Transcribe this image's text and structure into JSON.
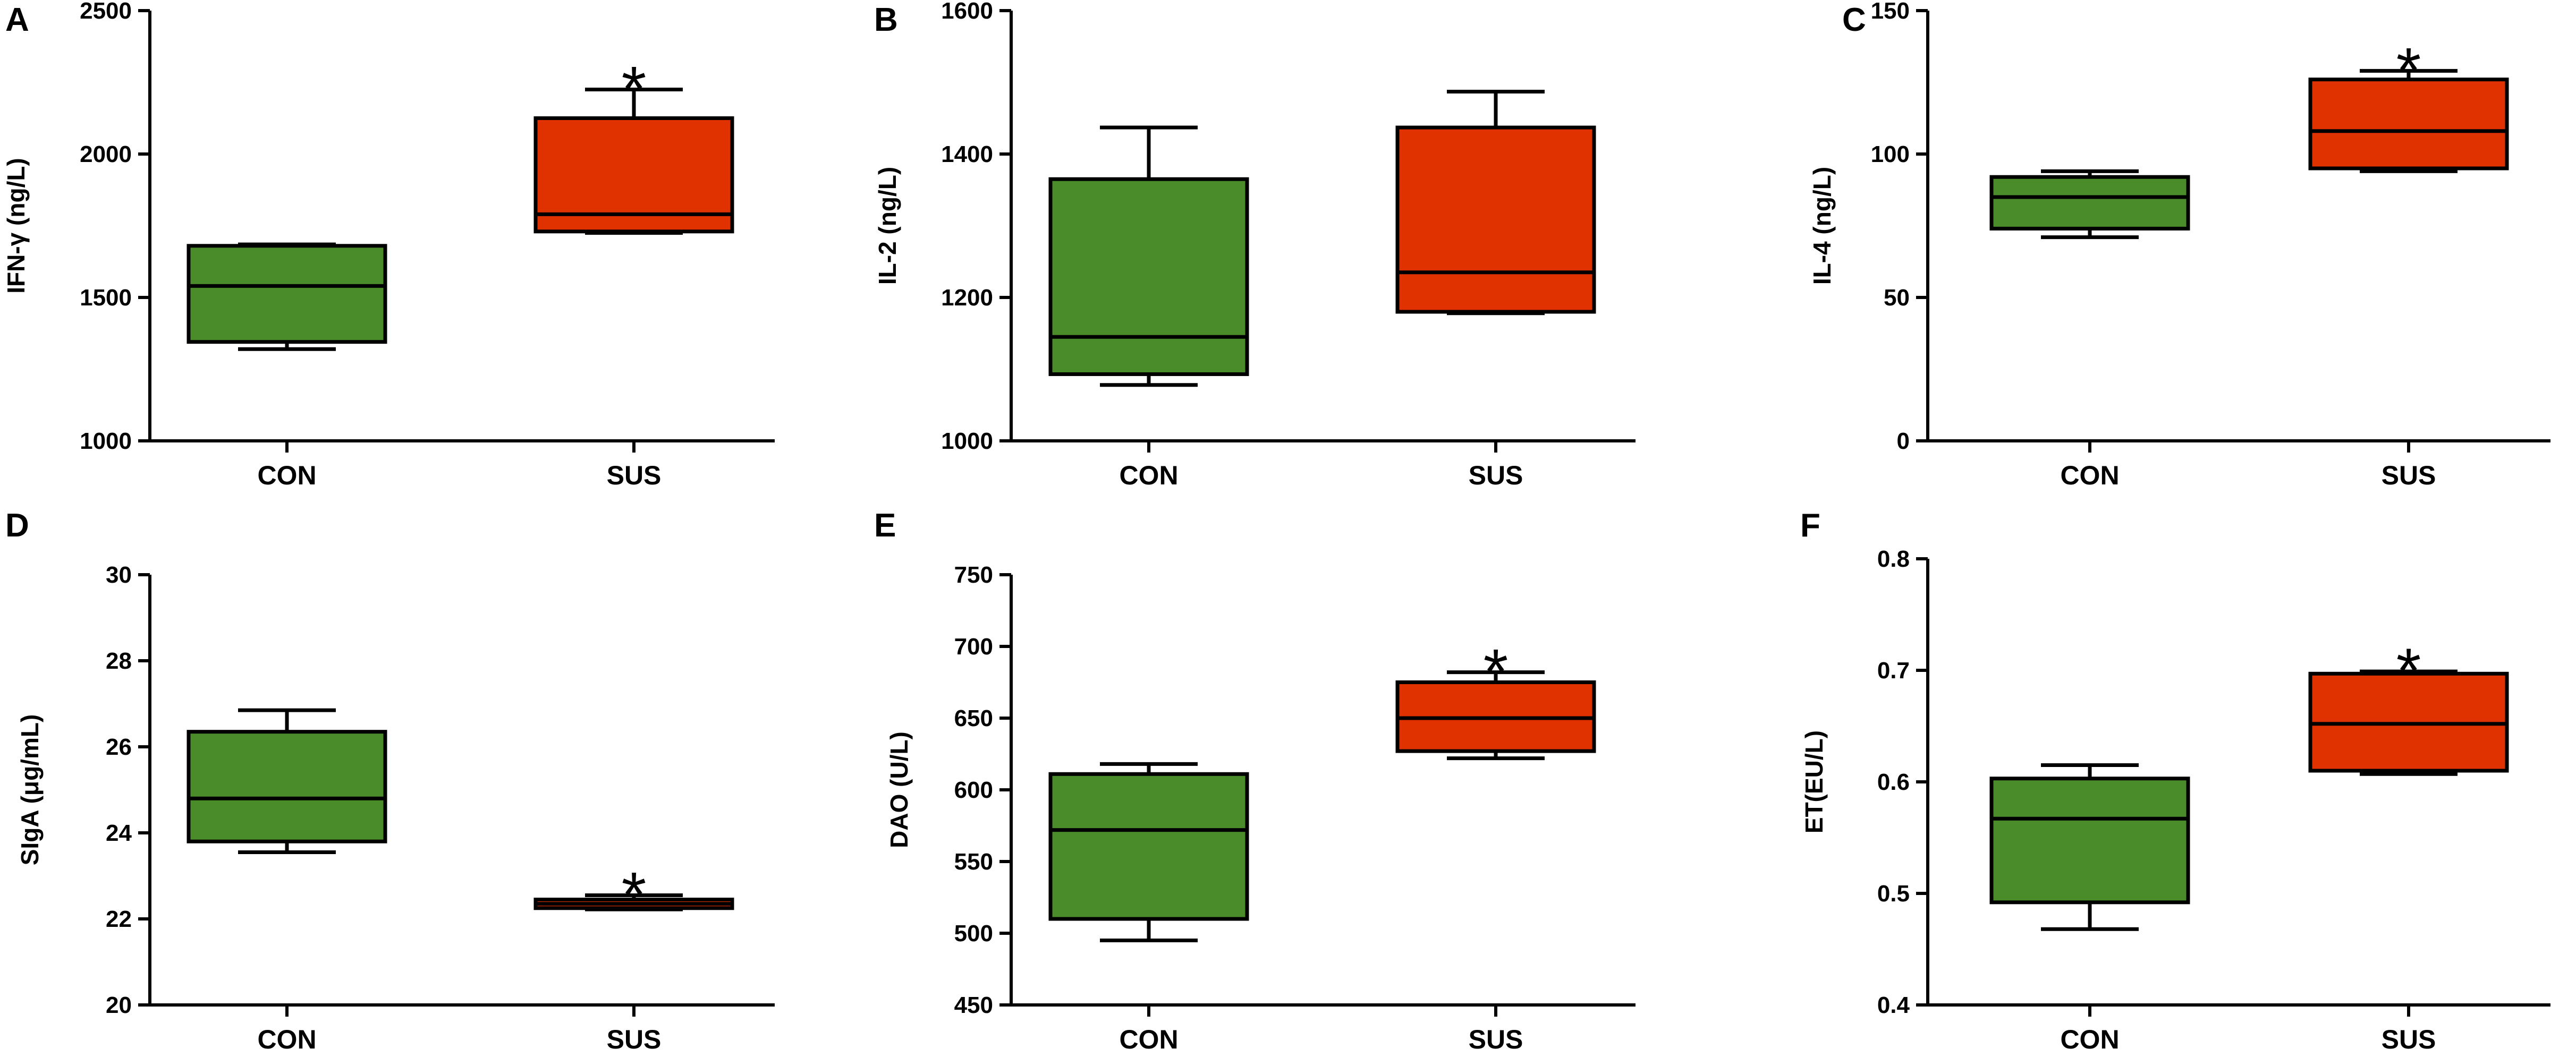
{
  "chart_data": [
    {
      "type": "box",
      "panel": "A",
      "ylabel": "IFN-γ (ng/L)",
      "ylim": [
        1000,
        2500
      ],
      "yticks": [
        1000,
        1500,
        2000,
        2500
      ],
      "categories": [
        "CON",
        "SUS"
      ],
      "boxes": [
        {
          "name": "CON",
          "min": 1320,
          "q1": 1345,
          "median": 1540,
          "q3": 1680,
          "max": 1685,
          "color": "#4a8c2a"
        },
        {
          "name": "SUS",
          "min": 1725,
          "q1": 1730,
          "median": 1790,
          "q3": 2125,
          "max": 2225,
          "color": "#e03200"
        }
      ],
      "annotations": [
        {
          "category": "SUS",
          "text": "*"
        }
      ]
    },
    {
      "type": "box",
      "panel": "B",
      "ylabel": "IL-2 (ng/L)",
      "ylim": [
        1000,
        1600
      ],
      "yticks": [
        1000,
        1200,
        1400,
        1600
      ],
      "categories": [
        "CON",
        "SUS"
      ],
      "boxes": [
        {
          "name": "CON",
          "min": 1078,
          "q1": 1093,
          "median": 1145,
          "q3": 1365,
          "max": 1437,
          "color": "#4a8c2a"
        },
        {
          "name": "SUS",
          "min": 1178,
          "q1": 1180,
          "median": 1235,
          "q3": 1437,
          "max": 1487,
          "color": "#e03200"
        }
      ],
      "annotations": []
    },
    {
      "type": "box",
      "panel": "C",
      "ylabel": "IL-4 (ng/L)",
      "ylim": [
        0,
        150
      ],
      "yticks": [
        0,
        50,
        100,
        150
      ],
      "categories": [
        "CON",
        "SUS"
      ],
      "boxes": [
        {
          "name": "CON",
          "min": 71,
          "q1": 74,
          "median": 85,
          "q3": 92,
          "max": 94,
          "color": "#4a8c2a"
        },
        {
          "name": "SUS",
          "min": 94,
          "q1": 95,
          "median": 108,
          "q3": 126,
          "max": 129,
          "color": "#e03200"
        }
      ],
      "annotations": [
        {
          "category": "SUS",
          "text": "*"
        }
      ]
    },
    {
      "type": "box",
      "panel": "D",
      "ylabel": "SIgA (μg/mL)",
      "ylim": [
        20,
        30
      ],
      "yticks": [
        20,
        22,
        24,
        26,
        28,
        30
      ],
      "categories": [
        "CON",
        "SUS"
      ],
      "boxes": [
        {
          "name": "CON",
          "min": 23.55,
          "q1": 23.8,
          "median": 24.8,
          "q3": 26.35,
          "max": 26.85,
          "color": "#4a8c2a"
        },
        {
          "name": "SUS",
          "min": 22.22,
          "q1": 22.25,
          "median": 22.35,
          "q3": 22.45,
          "max": 22.55,
          "color": "#e03200"
        }
      ],
      "annotations": [
        {
          "category": "SUS",
          "text": "*"
        }
      ]
    },
    {
      "type": "box",
      "panel": "E",
      "ylabel": "DAO (U/L)",
      "ylim": [
        450,
        750
      ],
      "yticks": [
        450,
        500,
        550,
        600,
        650,
        700,
        750
      ],
      "categories": [
        "CON",
        "SUS"
      ],
      "boxes": [
        {
          "name": "CON",
          "min": 495,
          "q1": 510,
          "median": 572,
          "q3": 611,
          "max": 618,
          "color": "#4a8c2a"
        },
        {
          "name": "SUS",
          "min": 622,
          "q1": 627,
          "median": 650,
          "q3": 675,
          "max": 682,
          "color": "#e03200"
        }
      ],
      "annotations": [
        {
          "category": "SUS",
          "text": "*"
        }
      ]
    },
    {
      "type": "box",
      "panel": "F",
      "ylabel": "ET(EU/L)",
      "ylim": [
        0.4,
        0.8
      ],
      "yticks": [
        0.4,
        0.5,
        0.6,
        0.7,
        0.8
      ],
      "categories": [
        "CON",
        "SUS"
      ],
      "boxes": [
        {
          "name": "CON",
          "min": 0.468,
          "q1": 0.492,
          "median": 0.567,
          "q3": 0.603,
          "max": 0.615,
          "color": "#4a8c2a"
        },
        {
          "name": "SUS",
          "min": 0.607,
          "q1": 0.61,
          "median": 0.652,
          "q3": 0.697,
          "max": 0.699,
          "color": "#e03200"
        }
      ],
      "annotations": [
        {
          "category": "SUS",
          "text": "*"
        }
      ]
    }
  ]
}
